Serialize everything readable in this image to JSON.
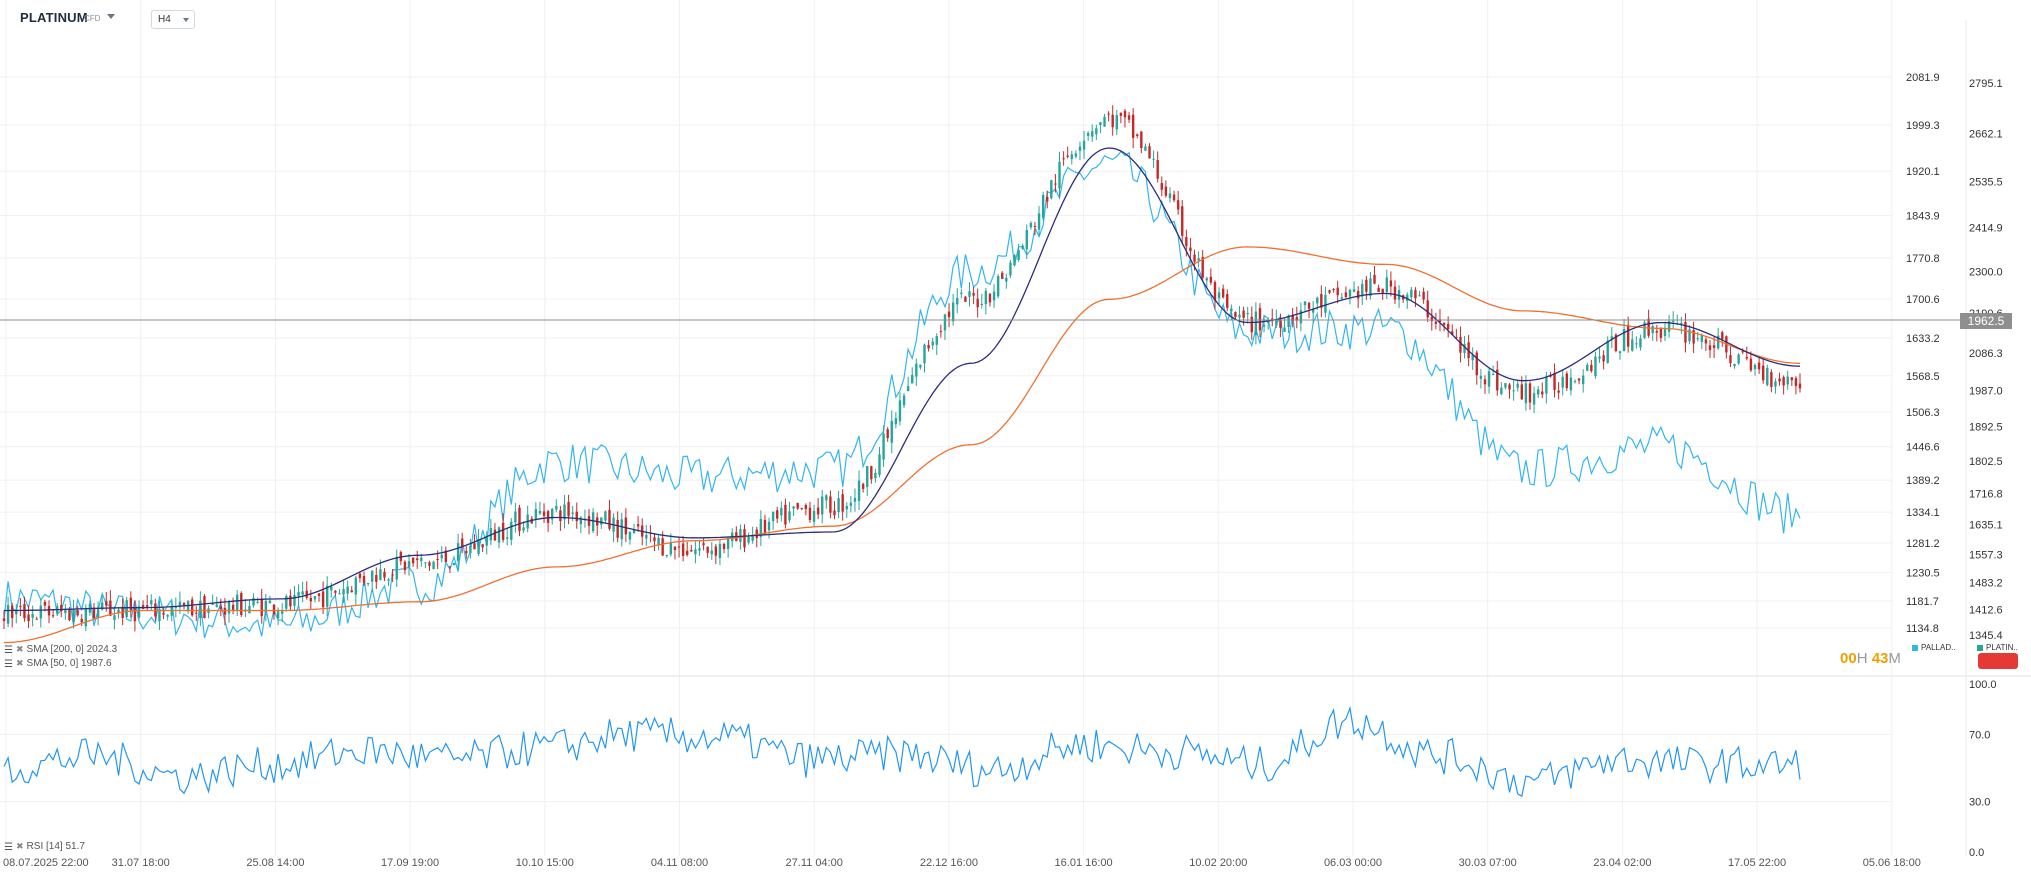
{
  "instrument": {
    "name": "PLATINUM",
    "type": "CFD",
    "timeframe": "H4"
  },
  "indicators": [
    {
      "label": "SMA [200, 0] 2024.3",
      "color": "#f07030"
    },
    {
      "label": "SMA [50, 0] 1987.6",
      "color": "#2b2f7a"
    },
    {
      "label": "RSI [14] 51.7",
      "color": "#2196f3"
    }
  ],
  "countdown": {
    "h": "00",
    "h_unit": "H",
    "m": "43",
    "m_unit": "M"
  },
  "series_legend": [
    {
      "name": "PALLAD..",
      "color": "#33b5ee"
    },
    {
      "name": "PLATIN..",
      "color": "#26a69a"
    }
  ],
  "current_price_tag": "1962.5",
  "colors": {
    "up": "#26a69a",
    "down": "#c62828",
    "comparison": "#33b5ee",
    "sma200": "#f07030",
    "sma50": "#2b2f7a",
    "rsi": "#2196f3",
    "grid": "#eef0f3",
    "priceline": "#8f8f8f"
  },
  "chart_data": [
    {
      "type": "candlestick",
      "series": [
        {
          "name": "PLATINUM",
          "style": "candles",
          "axis": "left_price",
          "x_time": [
            "08.07.2025 22:00",
            "31.07 18:00",
            "25.08 14:00",
            "17.09 19:00",
            "10.10 15:00",
            "04.11 08:00",
            "27.11 04:00",
            "22.12 16:00",
            "16.01 16:00",
            "10.02 20:00",
            "06.03 00:00",
            "30.03 07:00",
            "23.04 02:00",
            "17.05 22:00"
          ],
          "values": [
            1160,
            1165,
            1175,
            1245,
            1335,
            1270,
            1345,
            1700,
            2010,
            1660,
            1720,
            1540,
            1650,
            1560
          ]
        },
        {
          "name": "PALLAD..",
          "style": "line",
          "axis": "right_price",
          "values": [
            1440,
            1400,
            1370,
            1480,
            1800,
            1760,
            1780,
            2300,
            2580,
            2140,
            2150,
            1780,
            1840,
            1660
          ]
        },
        {
          "name": "SMA [200, 0]",
          "style": "line",
          "last": 2024.3,
          "values": [
            1110,
            1165,
            1165,
            1180,
            1240,
            1285,
            1310,
            1450,
            1700,
            1790,
            1760,
            1680,
            1650,
            1590
          ]
        },
        {
          "name": "SMA [50, 0]",
          "style": "line",
          "last": 1987.6,
          "values": [
            1165,
            1170,
            1185,
            1260,
            1325,
            1290,
            1300,
            1590,
            1960,
            1660,
            1710,
            1560,
            1660,
            1585
          ]
        }
      ],
      "x_ticks": [
        "08.07.2025 22:00",
        "31.07 18:00",
        "25.08 14:00",
        "17.09 19:00",
        "10.10 15:00",
        "04.11 08:00",
        "27.11 04:00",
        "22.12 16:00",
        "16.01 16:00",
        "10.02 20:00",
        "06.03 00:00",
        "30.03 07:00",
        "23.04 02:00",
        "17.05 22:00",
        "05.06 18:00"
      ],
      "y_ticks_left": [
        "2081.9",
        "1999.3",
        "1920.1",
        "1843.9",
        "1770.8",
        "1700.6",
        "1633.2",
        "1568.5",
        "1506.3",
        "1446.6",
        "1389.2",
        "1334.1",
        "1281.2",
        "1230.5",
        "1181.7",
        "1134.8"
      ],
      "y_ticks_right": [
        "2795.1",
        "2662.1",
        "2535.5",
        "2414.9",
        "2300.0",
        "2190.6",
        "2086.3",
        "1987.0",
        "1892.5",
        "1802.5",
        "1716.8",
        "1635.1",
        "1557.3",
        "1483.2",
        "1412.6",
        "1345.4"
      ],
      "ylim_left": [
        1080,
        2180
      ],
      "ylim_right": [
        1280,
        2960
      ],
      "current_price": 1962.5,
      "grid": true,
      "legend": "bottom-right"
    },
    {
      "type": "line",
      "series": [
        {
          "name": "RSI [14]",
          "last": 51.7,
          "values": [
            50,
            57,
            45,
            52,
            60,
            55,
            62,
            70,
            68,
            55,
            58,
            49,
            64,
            60,
            52,
            78,
            57,
            42,
            55,
            52,
            51.7
          ]
        }
      ],
      "y_ticks": [
        "100.0",
        "70.0",
        "30.0",
        "0.0"
      ],
      "ylim": [
        0,
        100
      ],
      "grid": true
    }
  ]
}
